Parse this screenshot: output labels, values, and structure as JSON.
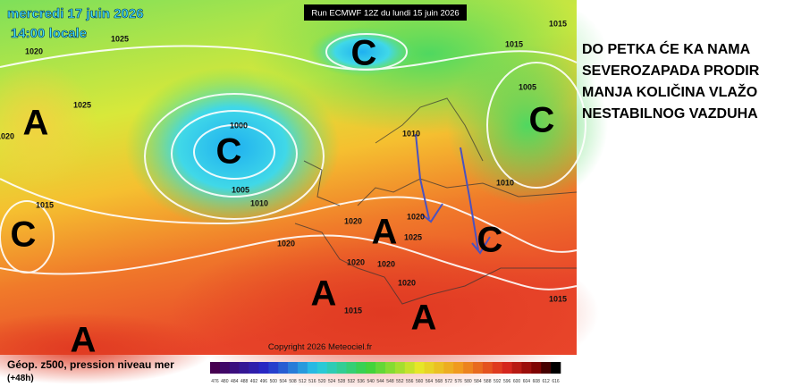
{
  "map": {
    "date": "mercredi 17 juin 2026",
    "time": "14:00 locale",
    "run": "Run ECMWF 12Z du lundi 15 juin 2026",
    "copyright": "Copyright 2026 Meteociel.fr",
    "isobar_labels": [
      "1025",
      "1020",
      "1025",
      "1020",
      "1000",
      "1005",
      "1010",
      "1015",
      "1020",
      "1020",
      "1020",
      "1025",
      "1020",
      "1020",
      "1020",
      "1015",
      "1015",
      "1015",
      "1005",
      "1010",
      "1015",
      "1010"
    ],
    "pressure_centers": [
      "A",
      "C",
      "C",
      "C",
      "C",
      "A",
      "A",
      "A",
      "A",
      "C"
    ]
  },
  "legend": {
    "title": "Géop. z500, pression niveau mer",
    "lead": "(+48h)",
    "scale": [
      476,
      480,
      484,
      488,
      492,
      496,
      500,
      504,
      508,
      512,
      516,
      520,
      524,
      528,
      532,
      536,
      540,
      544,
      548,
      552,
      556,
      560,
      564,
      568,
      572,
      576,
      580,
      584,
      588,
      592,
      596,
      600,
      604,
      608,
      612,
      616
    ]
  },
  "annotation": {
    "lines": [
      "DO PETKA ĆE KA NAMA",
      "SEVEROZAPADA PRODIR",
      "MANJA KOLIČINA VLAŽO",
      "NESTABILNOG VAZDUHA"
    ]
  }
}
